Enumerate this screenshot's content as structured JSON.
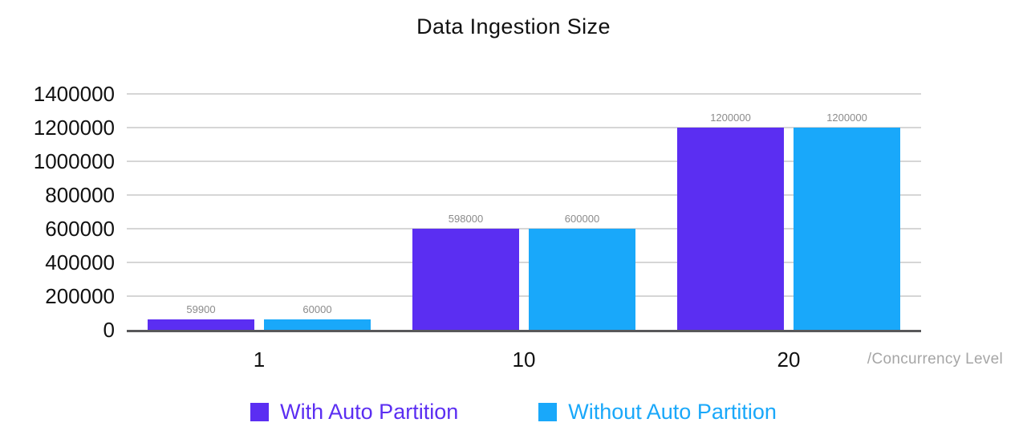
{
  "title": "Data Ingestion Size",
  "chart_data": {
    "type": "bar",
    "title": "Data Ingestion Size",
    "categories": [
      "1",
      "10",
      "20"
    ],
    "series": [
      {
        "name": "With Auto Partition",
        "color": "#5B2EF2",
        "values": [
          59900,
          598000,
          1200000
        ]
      },
      {
        "name": "Without Auto Partition",
        "color": "#19A8FA",
        "values": [
          60000,
          600000,
          1200000
        ]
      }
    ],
    "data_labels": [
      [
        "59900",
        "60000"
      ],
      [
        "598000",
        "600000"
      ],
      [
        "1200000",
        "1200000"
      ]
    ],
    "xlabel": "/Concurrency Level",
    "ylabel": "",
    "ylim": [
      0,
      1400000
    ],
    "ytick_labels": [
      "1400000",
      "1200000",
      "1000000",
      "800000",
      "600000",
      "400000",
      "200000",
      "0"
    ],
    "grid": true,
    "legend_position": "bottom"
  }
}
